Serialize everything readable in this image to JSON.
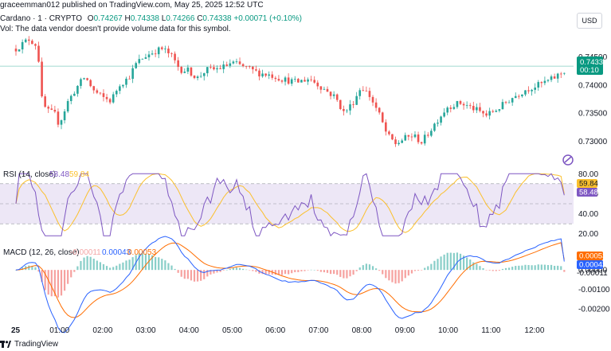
{
  "publisher_line": "graceemman012 published on TradingView.com, May 25, 2025 12:52 UTC",
  "symbol": {
    "title": "Cardano · 1 · CRYPTO",
    "ohlc": {
      "o_label": "O",
      "o": "0.74267",
      "h_label": "H",
      "h": "0.74338",
      "l_label": "L",
      "l": "0.74266",
      "c_label": "C",
      "c": "0.74338",
      "change": "+0.00071 (+0.10%)"
    },
    "vol_note": "Vol: The data vendor doesn't provide volume data for this symbol."
  },
  "currency_button": "USD",
  "colors": {
    "up": "#26a69a",
    "down": "#ef5350",
    "rsi": "#7e57c2",
    "rsi_ma": "#fbc02d",
    "macd": "#2962ff",
    "signal": "#ff6d00",
    "last_price": "#089981",
    "rsi_band": "#ede7f6"
  },
  "price_tag": {
    "price": "0.74338",
    "countdown": "00:10"
  },
  "rsi_legend": {
    "label": "RSI (14, close)",
    "rsi": "58.48",
    "ma": "59.84"
  },
  "rsi_tags": {
    "ma": "59.84",
    "rsi": "58.48"
  },
  "macd_legend": {
    "label": "MACD (12, 26, close)",
    "hist": "-0.00011",
    "macd": "0.00043",
    "signal": "0.00053"
  },
  "macd_tags": {
    "signal": "0.00053",
    "macd": "0.00043",
    "hist": "-0.00011"
  },
  "footer_brand": "TradingView",
  "chart_data": [
    {
      "type": "candlestick",
      "title": "Cardano · 1 · CRYPTO",
      "y_ticks": [
        0.745,
        0.74,
        0.735,
        0.73
      ],
      "y_tick_labels": [
        "0.74500",
        "0.74000",
        "0.73500",
        "0.73000"
      ],
      "ylim": [
        0.7275,
        0.7495
      ],
      "x_ticks": [
        "25",
        "01:00",
        "02:00",
        "03:00",
        "04:00",
        "05:00",
        "06:00",
        "07:00",
        "08:00",
        "09:00",
        "10:00",
        "11:00",
        "12:00"
      ],
      "path_x_hours": [
        0.0,
        0.3,
        0.5,
        0.6,
        0.7,
        0.9,
        1.0,
        1.2,
        1.4,
        1.6,
        1.8,
        2.0,
        2.2,
        2.4,
        2.6,
        2.8,
        3.0,
        3.2,
        3.4,
        3.6,
        3.8,
        4.0,
        4.2,
        4.4,
        4.6,
        4.8,
        5.0,
        5.3,
        5.6,
        5.9,
        6.2,
        6.5,
        6.8,
        7.1,
        7.4,
        7.6,
        7.8,
        8.0,
        8.2,
        8.4,
        8.6,
        8.8,
        9.0,
        9.2,
        9.4,
        9.6,
        9.8,
        10.0,
        10.3,
        10.6,
        10.9,
        11.2,
        11.5,
        11.8,
        12.1,
        12.4,
        12.7
      ],
      "path_close": [
        0.7465,
        0.7482,
        0.747,
        0.7375,
        0.7355,
        0.7348,
        0.733,
        0.737,
        0.7395,
        0.7415,
        0.739,
        0.7378,
        0.7372,
        0.7402,
        0.7412,
        0.744,
        0.7452,
        0.746,
        0.7465,
        0.7452,
        0.7428,
        0.7426,
        0.7412,
        0.7427,
        0.7428,
        0.7432,
        0.744,
        0.7432,
        0.7422,
        0.7418,
        0.741,
        0.7405,
        0.7412,
        0.7395,
        0.7378,
        0.735,
        0.7368,
        0.7398,
        0.738,
        0.735,
        0.731,
        0.7295,
        0.7305,
        0.731,
        0.7298,
        0.732,
        0.7342,
        0.7362,
        0.7368,
        0.7358,
        0.7346,
        0.736,
        0.7378,
        0.7392,
        0.74,
        0.741,
        0.7425
      ],
      "last_price": 0.74338
    },
    {
      "type": "line",
      "title": "RSI (14, close)",
      "y_ticks": [
        80,
        60,
        40,
        20
      ],
      "ylim": [
        15,
        85
      ],
      "bands": [
        30,
        50,
        70
      ],
      "series": [
        {
          "name": "RSI",
          "last": 58.48
        },
        {
          "name": "RSI-based MA",
          "last": 59.84
        }
      ]
    },
    {
      "type": "line",
      "title": "MACD (12, 26, close)",
      "y_ticks": [
        0.0,
        -0.001,
        -0.002
      ],
      "y_tick_labels": [
        "0.00000",
        "-0.00100",
        "-0.00200"
      ],
      "ylim": [
        -0.0024,
        0.0007
      ],
      "series": [
        {
          "name": "MACD",
          "last": 0.00043
        },
        {
          "name": "Signal",
          "last": 0.00053
        },
        {
          "name": "Histogram",
          "last": -0.00011
        }
      ]
    }
  ]
}
